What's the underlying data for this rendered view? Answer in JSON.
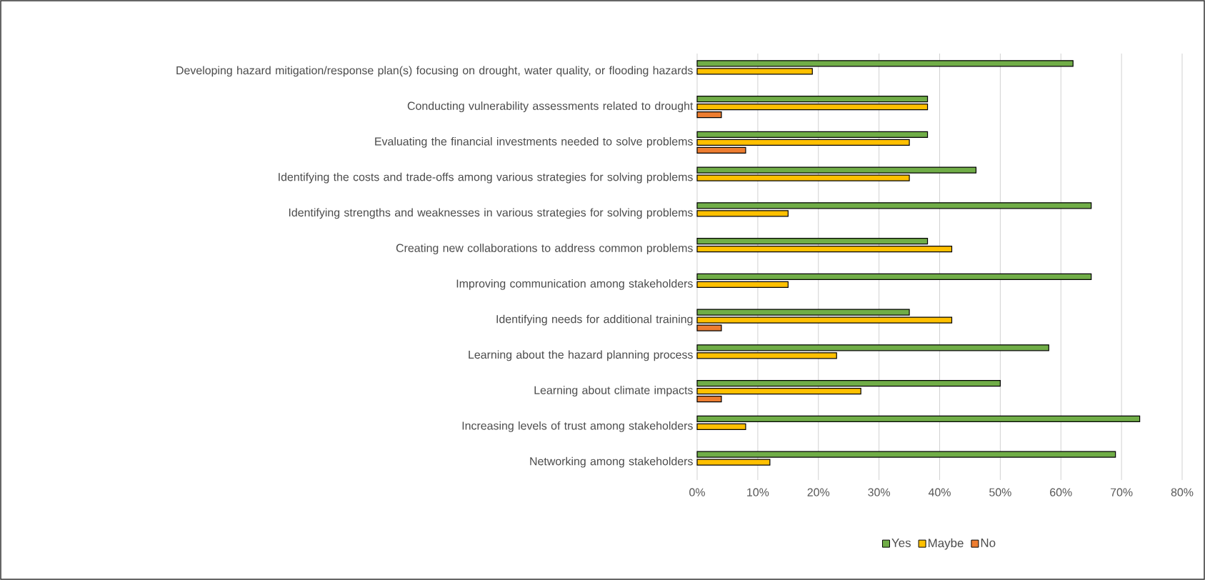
{
  "chart_data": {
    "type": "bar",
    "orientation": "horizontal",
    "categories": [
      "Developing hazard mitigation/response plan(s) focusing on drought, water quality, or flooding hazards",
      "Conducting vulnerability assessments related to drought",
      "Evaluating the financial investments needed to solve problems",
      "Identifying the costs and trade-offs among various strategies for solving problems",
      "Identifying strengths and weaknesses in various strategies for solving problems",
      "Creating new collaborations to address common problems",
      "Improving communication among stakeholders",
      "Identifying needs for additional training",
      "Learning about the hazard planning process",
      "Learning about climate impacts",
      "Increasing levels of trust among stakeholders",
      "Networking among stakeholders"
    ],
    "series": [
      {
        "name": "Yes",
        "color": "#70ad47",
        "values": [
          62,
          38,
          38,
          46,
          65,
          38,
          65,
          35,
          58,
          50,
          73,
          69
        ]
      },
      {
        "name": "Maybe",
        "color": "#ffc000",
        "values": [
          19,
          38,
          35,
          35,
          15,
          42,
          15,
          42,
          23,
          27,
          8,
          12
        ]
      },
      {
        "name": "No",
        "color": "#ed7d31",
        "values": [
          null,
          4,
          8,
          null,
          null,
          null,
          null,
          4,
          null,
          4,
          null,
          null
        ]
      }
    ],
    "xlim": [
      0,
      80
    ],
    "xticks": [
      {
        "value": 0,
        "label": "0%"
      },
      {
        "value": 10,
        "label": "10%"
      },
      {
        "value": 20,
        "label": "20%"
      },
      {
        "value": 30,
        "label": "30%"
      },
      {
        "value": 40,
        "label": "40%"
      },
      {
        "value": 50,
        "label": "50%"
      },
      {
        "value": 60,
        "label": "60%"
      },
      {
        "value": 70,
        "label": "70%"
      },
      {
        "value": 80,
        "label": "80%"
      }
    ],
    "grid": "x",
    "legend": "bottom"
  }
}
